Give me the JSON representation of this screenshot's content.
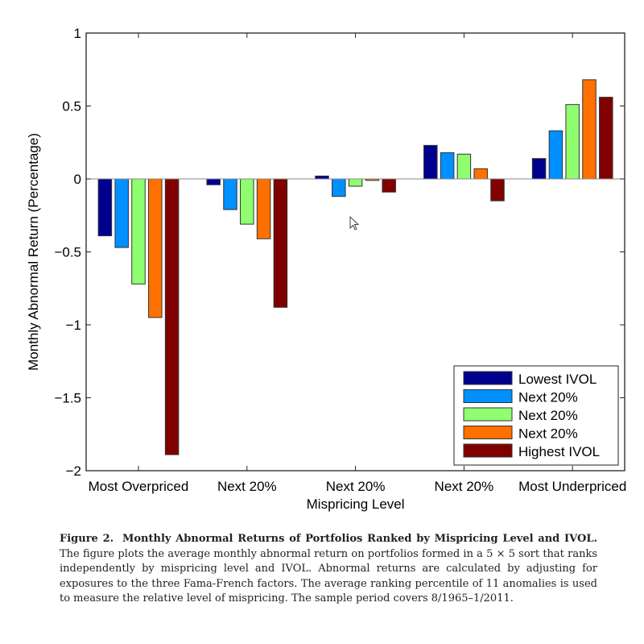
{
  "chart_data": {
    "type": "bar",
    "title": "",
    "xlabel": "Mispricing Level",
    "ylabel": "Monthly Abnormal Return (Percentage)",
    "ylim": [
      -2,
      1
    ],
    "yticks": [
      1,
      0.5,
      0,
      -0.5,
      -1,
      -1.5,
      -2
    ],
    "ytick_labels": [
      "1",
      "0.5",
      "0",
      "−0.5",
      "−1",
      "−1.5",
      "−2"
    ],
    "categories": [
      "Most Overpriced",
      "Next 20%",
      "Next 20%",
      "Next 20%",
      "Most Underpriced"
    ],
    "grid": false,
    "legend_position": "bottom-right",
    "series": [
      {
        "name": "Lowest IVOL",
        "color": "#00008f",
        "values": [
          -0.39,
          -0.04,
          0.02,
          0.23,
          0.14
        ]
      },
      {
        "name": "Next 20%",
        "color": "#0090ff",
        "values": [
          -0.47,
          -0.21,
          -0.12,
          0.18,
          0.33
        ]
      },
      {
        "name": "Next 20%",
        "color": "#8fff70",
        "values": [
          -0.72,
          -0.31,
          -0.05,
          0.17,
          0.51
        ]
      },
      {
        "name": "Next 20%",
        "color": "#ff7000",
        "values": [
          -0.95,
          -0.41,
          -0.01,
          0.07,
          0.68
        ]
      },
      {
        "name": "Highest IVOL",
        "color": "#800000",
        "values": [
          -1.89,
          -0.88,
          -0.09,
          -0.15,
          0.56
        ]
      }
    ]
  },
  "caption": {
    "figure_label": "Figure 2.",
    "bold_title": "Monthly Abnormal Returns of Portfolios Ranked by Mispricing Level and IVOL.",
    "body": "The figure plots the average monthly abnormal return on portfolios formed in a 5 × 5 sort that ranks independently by mispricing level and IVOL. Abnormal returns are calculated by adjusting for exposures to the three Fama-French factors. The average ranking percentile of 11 anomalies is used to measure the relative level of mispricing. The sample period covers 8/1965–1/2011."
  }
}
